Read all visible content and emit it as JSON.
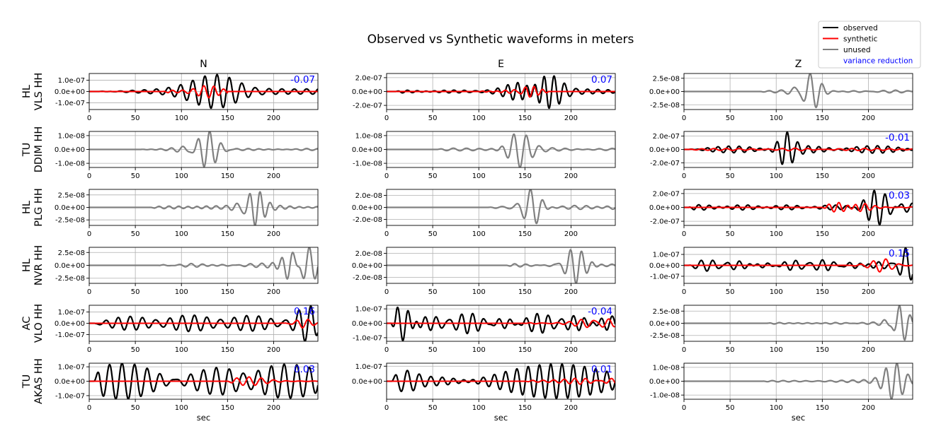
{
  "chart_data": {
    "type": "line",
    "title": "Observed vs Synthetic waveforms in meters",
    "xlabel": "sec",
    "xlim": [
      0,
      248
    ],
    "xticks": [
      "0",
      "50",
      "100",
      "150",
      "200"
    ],
    "grid": true,
    "columns": [
      "N",
      "E",
      "Z"
    ],
    "legend": {
      "placement": "top-right",
      "entries": [
        {
          "label": "observed",
          "color": "#000000"
        },
        {
          "label": "synthetic",
          "color": "#ff0000"
        },
        {
          "label": "unused",
          "color": "#808080"
        },
        {
          "label": "variance reduction",
          "color": "#0000ff"
        }
      ]
    },
    "stations": [
      {
        "network": "HL",
        "label": "VLS HH",
        "panels": [
          {
            "vr": "-0.07",
            "used": true,
            "ticks": [
              "1.0e-07",
              "0.0e+00",
              "-1.0e-07"
            ],
            "tick_values": [
              1e-07,
              0,
              -1e-07
            ],
            "ylim": [
              -1.6e-07,
              1.6e-07
            ],
            "obs": {
              "amp": 1.5e-07,
              "t0": 10,
              "t1": 248,
              "peak": 148,
              "w": 40,
              "base": 0.12,
              "period": 12,
              "seed": 1
            },
            "syn": {
              "amp": 5.5e-08,
              "t0": 80,
              "t1": 150,
              "peak": 125,
              "w": 15,
              "base": 0.15,
              "period": 10,
              "seed": 2
            }
          },
          {
            "vr": "0.07",
            "used": true,
            "ticks": [
              "2.0e-07",
              "0.0e+00",
              "-2.0e-07"
            ],
            "tick_values": [
              2e-07,
              0,
              -2e-07
            ],
            "ylim": [
              -2.6e-07,
              2.6e-07
            ],
            "obs": {
              "amp": 2.4e-07,
              "t0": 10,
              "t1": 248,
              "peak": 168,
              "w": 30,
              "base": 0.06,
              "period": 11,
              "seed": 3
            },
            "syn": {
              "amp": 8e-08,
              "t0": 100,
              "t1": 175,
              "peak": 150,
              "w": 15,
              "base": 0.15,
              "period": 10,
              "seed": 4
            }
          },
          {
            "vr": "",
            "used": false,
            "ticks": [
              "2.5e-08",
              "0.0e+00",
              "-2.5e-08"
            ],
            "tick_values": [
              2.5e-08,
              0,
              -2.5e-08
            ],
            "ylim": [
              -3.4e-08,
              3.4e-08
            ],
            "obs": {
              "amp": 3.4e-08,
              "t0": 80,
              "t1": 248,
              "peak": 135,
              "w": 14,
              "base": 0.05,
              "period": 13,
              "seed": 5
            }
          }
        ]
      },
      {
        "network": "TU",
        "label": "DDIM HH",
        "panels": [
          {
            "vr": "",
            "used": false,
            "ticks": [
              "1.0e-08",
              "0.0e+00",
              "-1.0e-08"
            ],
            "tick_values": [
              1e-08,
              0,
              -1e-08
            ],
            "ylim": [
              -1.3e-08,
              1.3e-08
            ],
            "obs": {
              "amp": 1.3e-08,
              "t0": 55,
              "t1": 248,
              "peak": 125,
              "w": 20,
              "base": 0.06,
              "period": 13,
              "seed": 6
            }
          },
          {
            "vr": "",
            "used": false,
            "ticks": [
              "1.0e-08",
              "0.0e+00",
              "-1.0e-08"
            ],
            "tick_values": [
              1e-08,
              0,
              -1e-08
            ],
            "ylim": [
              -1.3e-08,
              1.3e-08
            ],
            "obs": {
              "amp": 1.3e-08,
              "t0": 55,
              "t1": 248,
              "peak": 140,
              "w": 16,
              "base": 0.07,
              "period": 13,
              "seed": 7
            }
          },
          {
            "vr": "-0.01",
            "used": true,
            "ticks": [
              "2.0e-07",
              "0.0e+00",
              "-2.0e-07"
            ],
            "tick_values": [
              2e-07,
              0,
              -2e-07
            ],
            "ylim": [
              -2.7e-07,
              2.7e-07
            ],
            "obs": {
              "amp": 2.6e-07,
              "t0": 5,
              "t1": 248,
              "peak": 108,
              "w": 12,
              "base": 0.14,
              "period": 11,
              "seed": 8
            },
            "syn": {
              "amp": 2e-08,
              "t0": 5,
              "t1": 248,
              "peak": 120,
              "w": 40,
              "base": 0.4,
              "period": 14,
              "seed": 9
            }
          }
        ]
      },
      {
        "network": "HL",
        "label": "PLG HH",
        "panels": [
          {
            "vr": "",
            "used": false,
            "ticks": [
              "2.5e-08",
              "0.0e+00",
              "-2.5e-08"
            ],
            "tick_values": [
              2.5e-08,
              0,
              -2.5e-08
            ],
            "ylim": [
              -3.6e-08,
              3.6e-08
            ],
            "obs": {
              "amp": 3.6e-08,
              "t0": 65,
              "t1": 248,
              "peak": 175,
              "w": 14,
              "base": 0.06,
              "period": 12,
              "seed": 10
            }
          },
          {
            "vr": "",
            "used": false,
            "ticks": [
              "2.0e-08",
              "0.0e+00",
              "-2.0e-08"
            ],
            "tick_values": [
              2e-08,
              0,
              -2e-08
            ],
            "ylim": [
              -3e-08,
              3e-08
            ],
            "obs": {
              "amp": 3e-08,
              "t0": 110,
              "t1": 248,
              "peak": 158,
              "w": 14,
              "base": 0.06,
              "period": 13,
              "seed": 11
            }
          },
          {
            "vr": "0.03",
            "used": true,
            "ticks": [
              "2.0e-07",
              "0.0e+00",
              "-2.0e-07"
            ],
            "tick_values": [
              2e-07,
              0,
              -2e-07
            ],
            "ylim": [
              -2.6e-07,
              2.6e-07
            ],
            "obs": {
              "amp": 2.5e-07,
              "t0": 5,
              "t1": 248,
              "peak": 215,
              "w": 25,
              "base": 0.1,
              "period": 12,
              "seed": 12
            },
            "syn": {
              "amp": 7e-08,
              "t0": 150,
              "t1": 248,
              "peak": 180,
              "w": 20,
              "base": 0.1,
              "period": 12,
              "seed": 13
            }
          }
        ]
      },
      {
        "network": "HL",
        "label": "NVR HH",
        "panels": [
          {
            "vr": "",
            "used": false,
            "ticks": [
              "2.5e-08",
              "0.0e+00",
              "-2.5e-08"
            ],
            "tick_values": [
              2.5e-08,
              0,
              -2.5e-08
            ],
            "ylim": [
              -3.5e-08,
              3.5e-08
            ],
            "obs": {
              "amp": 3.5e-08,
              "t0": 75,
              "t1": 248,
              "peak": 225,
              "w": 18,
              "base": 0.04,
              "period": 13,
              "seed": 14
            }
          },
          {
            "vr": "",
            "used": false,
            "ticks": [
              "2.0e-08",
              "0.0e+00",
              "-2.0e-08"
            ],
            "tick_values": [
              2e-08,
              0,
              -2e-08
            ],
            "ylim": [
              -3e-08,
              3e-08
            ],
            "obs": {
              "amp": 3e-08,
              "t0": 130,
              "t1": 248,
              "peak": 200,
              "w": 18,
              "base": 0.07,
              "period": 13,
              "seed": 15
            }
          },
          {
            "vr": "0.15",
            "used": true,
            "ticks": [
              "1.0e-07",
              "0.0e+00",
              "-1.0e-07"
            ],
            "tick_values": [
              1e-07,
              0,
              -1e-07
            ],
            "ylim": [
              -1.65e-07,
              1.65e-07
            ],
            "obs": {
              "amp": 1.6e-07,
              "t0": 5,
              "t1": 248,
              "peak": 240,
              "w": 10,
              "base": 0.3,
              "period": 12,
              "seed": 16
            },
            "syn": {
              "amp": 6e-08,
              "t0": 180,
              "t1": 248,
              "peak": 218,
              "w": 15,
              "base": 0.1,
              "period": 12,
              "seed": 17
            }
          }
        ]
      },
      {
        "network": "AC",
        "label": "VLO HH",
        "panels": [
          {
            "vr": "0.16",
            "used": true,
            "ticks": [
              "1.0e-07",
              "0.0e+00",
              "-1.0e-07"
            ],
            "tick_values": [
              1e-07,
              0,
              -1e-07
            ],
            "ylim": [
              -1.6e-07,
              1.6e-07
            ],
            "obs": {
              "amp": 1.6e-07,
              "t0": 5,
              "t1": 248,
              "peak": 235,
              "w": 15,
              "base": 0.3,
              "period": 12,
              "seed": 18
            },
            "syn": {
              "amp": 4e-08,
              "t0": 200,
              "t1": 248,
              "peak": 230,
              "w": 12,
              "base": 0.1,
              "period": 12,
              "seed": 19
            }
          },
          {
            "vr": "-0.04",
            "used": true,
            "ticks": [
              "1.0e-07",
              "0.0e+00",
              "-1.0e-07"
            ],
            "tick_values": [
              1e-07,
              0,
              -1e-07
            ],
            "ylim": [
              -1.25e-07,
              1.25e-07
            ],
            "obs": {
              "amp": 1.2e-07,
              "t0": 5,
              "t1": 248,
              "peak": 22,
              "w": 15,
              "base": 0.4,
              "period": 12,
              "seed": 20
            },
            "syn": {
              "amp": 3e-08,
              "t0": 150,
              "t1": 248,
              "peak": 230,
              "w": 20,
              "base": 0.1,
              "period": 12,
              "seed": 21
            }
          },
          {
            "vr": "",
            "used": false,
            "ticks": [
              "2.5e-08",
              "0.0e+00",
              "-2.5e-08"
            ],
            "tick_values": [
              2.5e-08,
              0,
              -2.5e-08
            ],
            "ylim": [
              -3.7e-08,
              3.7e-08
            ],
            "obs": {
              "amp": 3.6e-08,
              "t0": 90,
              "t1": 248,
              "peak": 232,
              "w": 12,
              "base": 0.04,
              "period": 12,
              "seed": 22
            }
          }
        ]
      },
      {
        "network": "TU",
        "label": "AKAS HH",
        "panels": [
          {
            "vr": "0.03",
            "used": true,
            "ticks": [
              "1.0e-07",
              "0.0e+00",
              "-1.0e-07"
            ],
            "tick_values": [
              1e-07,
              0,
              -1e-07
            ],
            "ylim": [
              -1.25e-07,
              1.25e-07
            ],
            "obs": {
              "amp": 1.25e-07,
              "t0": 5,
              "t1": 248,
              "peak": 165,
              "w": 40,
              "base": 0.6,
              "period": 12,
              "seed": 23
            },
            "syn": {
              "amp": 3e-08,
              "t0": 150,
              "t1": 248,
              "peak": 175,
              "w": 25,
              "base": 0.1,
              "period": 12,
              "seed": 24
            }
          },
          {
            "vr": "0.01",
            "used": true,
            "ticks": [
              "1.0e-07",
              "0.0e+00"
            ],
            "tick_values": [
              1e-07,
              0
            ],
            "ylim": [
              -1.2e-07,
              1.2e-07
            ],
            "obs": {
              "amp": 1.15e-07,
              "t0": 5,
              "t1": 248,
              "peak": 20,
              "w": 15,
              "base": 0.35,
              "period": 12,
              "seed": 25
            },
            "syn": {
              "amp": 2e-08,
              "t0": 150,
              "t1": 248,
              "peak": 230,
              "w": 30,
              "base": 0.1,
              "period": 12,
              "seed": 26
            }
          },
          {
            "vr": "",
            "used": false,
            "ticks": [
              "1.0e-08",
              "0.0e+00",
              "-1.0e-08"
            ],
            "tick_values": [
              1e-08,
              0,
              -1e-08
            ],
            "ylim": [
              -1.3e-08,
              1.3e-08
            ],
            "obs": {
              "amp": 1.3e-08,
              "t0": 85,
              "t1": 248,
              "peak": 230,
              "w": 15,
              "base": 0.06,
              "period": 13,
              "seed": 27
            }
          }
        ]
      }
    ]
  }
}
